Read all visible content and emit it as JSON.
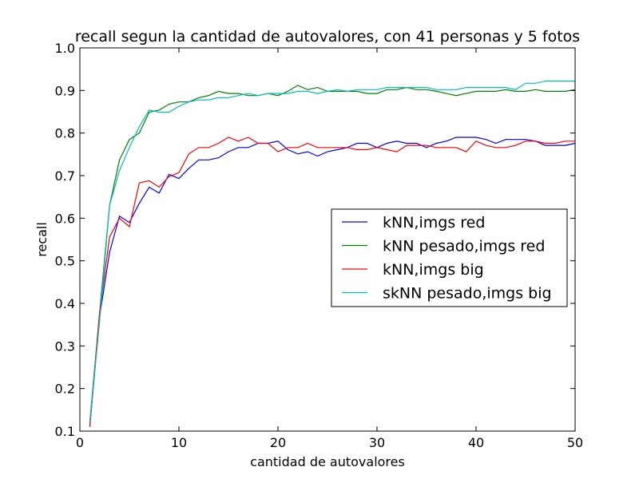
{
  "chart_data": {
    "type": "line",
    "title": "recall segun la cantidad de autovalores, con 41 personas y 5 fotos",
    "xlabel": "cantidad de autovalores",
    "ylabel": "recall",
    "xlim": [
      0,
      50
    ],
    "ylim": [
      0.1,
      1.0
    ],
    "xticks": [
      "0",
      "10",
      "20",
      "30",
      "40",
      "50"
    ],
    "yticks": [
      "0.1",
      "0.2",
      "0.3",
      "0.4",
      "0.5",
      "0.6",
      "0.7",
      "0.8",
      "0.9",
      "1.0"
    ],
    "grid": false,
    "legend_position": "center-right",
    "x": [
      1,
      2,
      3,
      4,
      5,
      6,
      7,
      8,
      9,
      10,
      11,
      12,
      13,
      14,
      15,
      16,
      17,
      18,
      19,
      20,
      21,
      22,
      23,
      24,
      25,
      26,
      27,
      28,
      29,
      30,
      31,
      32,
      33,
      34,
      35,
      36,
      37,
      38,
      39,
      40,
      41,
      42,
      43,
      44,
      45,
      46,
      47,
      48,
      49,
      50
    ],
    "series": [
      {
        "name": "kNN,imgs red",
        "color": "#0000ff",
        "values": [
          0.11,
          0.37,
          0.52,
          0.605,
          0.59,
          0.635,
          0.673,
          0.659,
          0.703,
          0.693,
          0.717,
          0.737,
          0.737,
          0.742,
          0.756,
          0.766,
          0.766,
          0.776,
          0.776,
          0.781,
          0.761,
          0.751,
          0.756,
          0.746,
          0.756,
          0.761,
          0.766,
          0.776,
          0.776,
          0.766,
          0.776,
          0.781,
          0.776,
          0.776,
          0.766,
          0.776,
          0.781,
          0.79,
          0.79,
          0.79,
          0.785,
          0.776,
          0.785,
          0.785,
          0.785,
          0.781,
          0.771,
          0.771,
          0.771,
          0.776
        ]
      },
      {
        "name": "kNN pesado,imgs red",
        "color": "#008000",
        "values": [
          0.12,
          0.38,
          0.63,
          0.737,
          0.785,
          0.8,
          0.849,
          0.854,
          0.868,
          0.873,
          0.873,
          0.883,
          0.888,
          0.898,
          0.893,
          0.893,
          0.888,
          0.888,
          0.893,
          0.888,
          0.898,
          0.912,
          0.902,
          0.907,
          0.898,
          0.898,
          0.898,
          0.898,
          0.893,
          0.893,
          0.902,
          0.902,
          0.907,
          0.902,
          0.902,
          0.898,
          0.893,
          0.888,
          0.893,
          0.898,
          0.898,
          0.898,
          0.902,
          0.898,
          0.898,
          0.902,
          0.898,
          0.898,
          0.898,
          0.902
        ]
      },
      {
        "name": "kNN,imgs big",
        "color": "#ff0000",
        "values": [
          0.11,
          0.38,
          0.556,
          0.6,
          0.58,
          0.683,
          0.688,
          0.673,
          0.698,
          0.707,
          0.751,
          0.766,
          0.766,
          0.776,
          0.79,
          0.781,
          0.79,
          0.776,
          0.776,
          0.756,
          0.766,
          0.766,
          0.776,
          0.766,
          0.766,
          0.766,
          0.766,
          0.761,
          0.761,
          0.766,
          0.761,
          0.756,
          0.771,
          0.771,
          0.771,
          0.766,
          0.766,
          0.766,
          0.756,
          0.781,
          0.771,
          0.766,
          0.766,
          0.771,
          0.781,
          0.781,
          0.776,
          0.776,
          0.781,
          0.781
        ]
      },
      {
        "name": "skNN pesado,imgs big",
        "color": "#00bfbf",
        "values": [
          0.12,
          0.36,
          0.63,
          0.712,
          0.766,
          0.815,
          0.854,
          0.849,
          0.849,
          0.863,
          0.873,
          0.878,
          0.878,
          0.883,
          0.883,
          0.888,
          0.893,
          0.888,
          0.893,
          0.893,
          0.893,
          0.898,
          0.898,
          0.893,
          0.898,
          0.902,
          0.898,
          0.902,
          0.902,
          0.902,
          0.907,
          0.907,
          0.907,
          0.907,
          0.907,
          0.902,
          0.902,
          0.902,
          0.907,
          0.907,
          0.907,
          0.907,
          0.907,
          0.902,
          0.917,
          0.917,
          0.922,
          0.922,
          0.922,
          0.922
        ]
      }
    ]
  }
}
